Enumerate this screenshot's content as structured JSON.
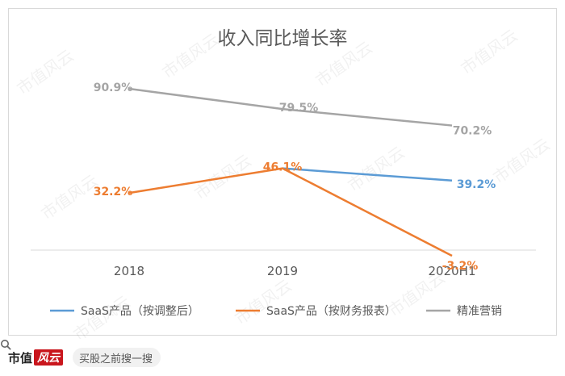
{
  "chart_data": {
    "type": "line",
    "title": "收入同比增长率",
    "categories": [
      "2018",
      "2019",
      "2020H1"
    ],
    "series": [
      {
        "name": "SaaS产品（按调整后）",
        "color": "#5b9bd5",
        "values": [
          null,
          46.1,
          39.2
        ],
        "labels": [
          "",
          "",
          "39.2%"
        ]
      },
      {
        "name": "SaaS产品（按财务报表）",
        "color": "#ed7d31",
        "values": [
          32.2,
          46.1,
          -3.2
        ],
        "labels": [
          "32.2%",
          "46.1%",
          "-3.2%"
        ]
      },
      {
        "name": "精准营销",
        "color": "#a5a5a5",
        "values": [
          90.9,
          79.5,
          70.2
        ],
        "labels": [
          "90.9%",
          "79.5%",
          "70.2%"
        ]
      }
    ],
    "ylim": [
      0,
      110
    ],
    "grid": false,
    "legend": "bottom"
  },
  "watermark": "市值风云",
  "footer": {
    "brand_text": "市值",
    "brand_badge": "风云",
    "search_text": "买股之前搜一搜"
  }
}
